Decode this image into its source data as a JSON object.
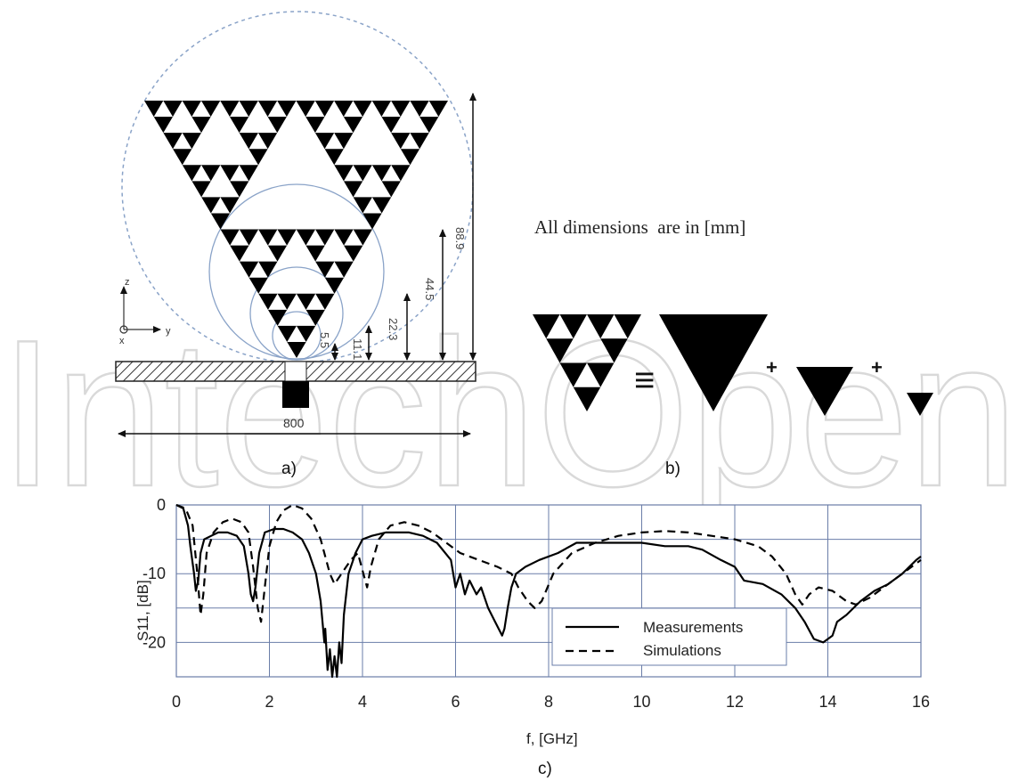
{
  "watermark": "IntechOpen",
  "panel_a": {
    "caption": "a)",
    "dims": [
      "88.9",
      "44.5",
      "22.3",
      "11.1",
      "5.5"
    ],
    "width": "800",
    "axes": {
      "z": "z",
      "x": "x",
      "y": "y"
    }
  },
  "panel_b": {
    "caption": "b)",
    "note": "All dimensions  are in [mm]",
    "equiv": "≡",
    "plus": "+"
  },
  "panel_c": {
    "caption": "c)"
  },
  "chart_data": {
    "type": "line",
    "xlabel": "f, [GHz]",
    "ylabel": "S11,  [dB]",
    "xlim": [
      0,
      16
    ],
    "ylim": [
      -25,
      0
    ],
    "xticks": [
      0,
      2,
      4,
      6,
      8,
      10,
      12,
      14,
      16
    ],
    "yticks": [
      0,
      -10,
      -20
    ],
    "grid": true,
    "legend": "bottom-right",
    "series": [
      {
        "name": "Measurements",
        "style": "solid",
        "points": [
          [
            0,
            0
          ],
          [
            0.15,
            -0.5
          ],
          [
            0.25,
            -3
          ],
          [
            0.3,
            -6
          ],
          [
            0.38,
            -10
          ],
          [
            0.42,
            -12.5
          ],
          [
            0.47,
            -11
          ],
          [
            0.52,
            -7
          ],
          [
            0.6,
            -5
          ],
          [
            0.75,
            -4.5
          ],
          [
            0.9,
            -4
          ],
          [
            1.1,
            -4
          ],
          [
            1.3,
            -4.5
          ],
          [
            1.45,
            -6
          ],
          [
            1.55,
            -10
          ],
          [
            1.6,
            -13
          ],
          [
            1.65,
            -14
          ],
          [
            1.7,
            -12
          ],
          [
            1.78,
            -7
          ],
          [
            1.9,
            -4
          ],
          [
            2.1,
            -3.5
          ],
          [
            2.3,
            -3.5
          ],
          [
            2.5,
            -4
          ],
          [
            2.7,
            -5
          ],
          [
            2.85,
            -7
          ],
          [
            3.0,
            -10
          ],
          [
            3.1,
            -14
          ],
          [
            3.18,
            -20
          ],
          [
            3.2,
            -18
          ],
          [
            3.25,
            -24
          ],
          [
            3.3,
            -21
          ],
          [
            3.35,
            -25
          ],
          [
            3.4,
            -22
          ],
          [
            3.45,
            -25
          ],
          [
            3.5,
            -20
          ],
          [
            3.55,
            -23
          ],
          [
            3.6,
            -16
          ],
          [
            3.7,
            -10
          ],
          [
            3.85,
            -7
          ],
          [
            4.0,
            -5
          ],
          [
            4.2,
            -4.5
          ],
          [
            4.5,
            -4
          ],
          [
            5.0,
            -4
          ],
          [
            5.3,
            -4.5
          ],
          [
            5.6,
            -5.5
          ],
          [
            5.9,
            -8
          ],
          [
            6.0,
            -12
          ],
          [
            6.1,
            -10
          ],
          [
            6.2,
            -13
          ],
          [
            6.3,
            -11
          ],
          [
            6.45,
            -13
          ],
          [
            6.55,
            -12
          ],
          [
            6.7,
            -15
          ],
          [
            6.85,
            -17
          ],
          [
            7.0,
            -19
          ],
          [
            7.05,
            -18
          ],
          [
            7.12,
            -15
          ],
          [
            7.2,
            -12
          ],
          [
            7.3,
            -10
          ],
          [
            7.5,
            -9
          ],
          [
            7.8,
            -8
          ],
          [
            8.2,
            -7
          ],
          [
            8.6,
            -5.5
          ],
          [
            9.0,
            -5.5
          ],
          [
            9.5,
            -5.5
          ],
          [
            10.0,
            -5.5
          ],
          [
            10.5,
            -6
          ],
          [
            11.0,
            -6
          ],
          [
            11.3,
            -6.5
          ],
          [
            11.7,
            -8
          ],
          [
            12.0,
            -9
          ],
          [
            12.2,
            -11
          ],
          [
            12.6,
            -11.5
          ],
          [
            13.0,
            -13
          ],
          [
            13.3,
            -15
          ],
          [
            13.5,
            -17
          ],
          [
            13.7,
            -19.5
          ],
          [
            13.9,
            -20
          ],
          [
            14.1,
            -19
          ],
          [
            14.2,
            -17
          ],
          [
            14.4,
            -16
          ],
          [
            14.7,
            -14
          ],
          [
            15.0,
            -12.5
          ],
          [
            15.3,
            -11.5
          ],
          [
            15.6,
            -10
          ],
          [
            15.9,
            -8
          ],
          [
            16,
            -7.5
          ]
        ]
      },
      {
        "name": "Simulations",
        "style": "dashed",
        "points": [
          [
            0,
            0
          ],
          [
            0.2,
            -0.5
          ],
          [
            0.35,
            -3
          ],
          [
            0.45,
            -10
          ],
          [
            0.52,
            -16
          ],
          [
            0.58,
            -13
          ],
          [
            0.65,
            -7
          ],
          [
            0.8,
            -4
          ],
          [
            1.0,
            -2.5
          ],
          [
            1.2,
            -2
          ],
          [
            1.4,
            -2.5
          ],
          [
            1.55,
            -4
          ],
          [
            1.65,
            -9
          ],
          [
            1.75,
            -15
          ],
          [
            1.82,
            -17
          ],
          [
            1.9,
            -12
          ],
          [
            2.0,
            -6
          ],
          [
            2.15,
            -2.5
          ],
          [
            2.3,
            -0.8
          ],
          [
            2.5,
            0
          ],
          [
            2.7,
            -0.5
          ],
          [
            2.9,
            -2
          ],
          [
            3.1,
            -5
          ],
          [
            3.3,
            -10
          ],
          [
            3.4,
            -11.5
          ],
          [
            3.55,
            -10
          ],
          [
            3.75,
            -8
          ],
          [
            3.9,
            -7
          ],
          [
            4.02,
            -10
          ],
          [
            4.1,
            -12
          ],
          [
            4.18,
            -9
          ],
          [
            4.35,
            -5
          ],
          [
            4.6,
            -3
          ],
          [
            4.9,
            -2.5
          ],
          [
            5.2,
            -3
          ],
          [
            5.5,
            -4
          ],
          [
            5.8,
            -5.5
          ],
          [
            6.1,
            -7
          ],
          [
            6.5,
            -8
          ],
          [
            6.9,
            -9
          ],
          [
            7.2,
            -10
          ],
          [
            7.35,
            -12
          ],
          [
            7.55,
            -14
          ],
          [
            7.7,
            -15
          ],
          [
            7.85,
            -14
          ],
          [
            8.1,
            -10
          ],
          [
            8.5,
            -7
          ],
          [
            9.0,
            -5.5
          ],
          [
            9.5,
            -4.5
          ],
          [
            10.0,
            -4
          ],
          [
            10.5,
            -3.8
          ],
          [
            11.0,
            -4
          ],
          [
            11.5,
            -4.5
          ],
          [
            12.0,
            -5
          ],
          [
            12.5,
            -6
          ],
          [
            12.8,
            -7.5
          ],
          [
            13.1,
            -10
          ],
          [
            13.3,
            -13
          ],
          [
            13.45,
            -14.5
          ],
          [
            13.6,
            -13
          ],
          [
            13.8,
            -12
          ],
          [
            14.1,
            -12.5
          ],
          [
            14.4,
            -14
          ],
          [
            14.6,
            -14.5
          ],
          [
            14.9,
            -13.5
          ],
          [
            15.2,
            -12
          ],
          [
            15.6,
            -10
          ],
          [
            16,
            -8
          ]
        ]
      }
    ]
  }
}
